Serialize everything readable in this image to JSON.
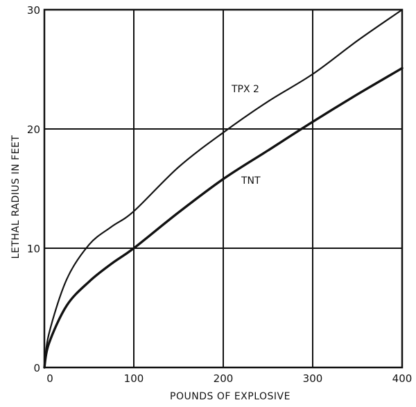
{
  "chart_data": {
    "type": "line",
    "title": "",
    "xlabel": "POUNDS OF EXPLOSIVE",
    "ylabel": "LETHAL RADIUS IN FEET",
    "xlim": [
      0,
      400
    ],
    "ylim": [
      0,
      30
    ],
    "grid": true,
    "x_ticks": [
      "0",
      "100",
      "200",
      "300",
      "400"
    ],
    "y_ticks": [
      "0",
      "10",
      "20",
      "30"
    ],
    "series": [
      {
        "name": "TPX 2",
        "color": "#111111",
        "x": [
          0,
          5,
          25,
          50,
          75,
          100,
          150,
          200,
          250,
          300,
          350,
          400
        ],
        "y": [
          0,
          2.8,
          7.4,
          10.3,
          11.8,
          13.1,
          16.8,
          19.7,
          22.3,
          24.6,
          27.4,
          30.0
        ]
      },
      {
        "name": "TNT",
        "color": "#111111",
        "x": [
          0,
          5,
          25,
          50,
          75,
          100,
          150,
          200,
          250,
          300,
          350,
          400
        ],
        "y": [
          0,
          2.0,
          5.2,
          7.2,
          8.7,
          10.0,
          13.0,
          15.8,
          18.2,
          20.6,
          22.9,
          25.1
        ]
      }
    ]
  }
}
